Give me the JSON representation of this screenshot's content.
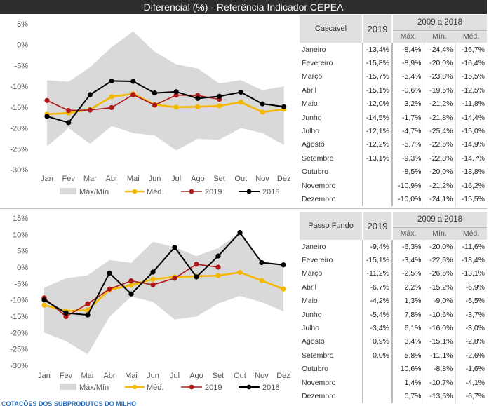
{
  "title": "Diferencial (%) - Referência Indicador CEPEA",
  "bottom_text": "COTAÇÕES DOS SUBPRODUTOS DO MILHO",
  "table_headers": {
    "year": "2019",
    "range": "2009 a 2018",
    "max": "Máx.",
    "min": "Mín.",
    "med": "Méd."
  },
  "colors": {
    "band": "#d9d9d9",
    "med": "#f5b800",
    "y2019": "#b01818",
    "y2018": "#000000"
  },
  "chart_data": [
    {
      "type": "line",
      "categories": [
        "Jan",
        "Fev",
        "Mar",
        "Abr",
        "Mai",
        "Jun",
        "Jul",
        "Ago",
        "Set",
        "Out",
        "Nov",
        "Dez"
      ],
      "ylim": [
        -30,
        5
      ],
      "yticks": [
        5,
        0,
        -5,
        -10,
        -15,
        -20,
        -25,
        -30
      ],
      "ytick_labels": [
        "5%",
        "0%",
        "-5%",
        "-10%",
        "-15%",
        "-20%",
        "-25%",
        "-30%"
      ],
      "legend": [
        "Máx/Mín",
        "Méd.",
        "2019",
        "2018"
      ],
      "band_max": [
        -8.5,
        -8.9,
        -5.4,
        -0.6,
        3.2,
        -1.7,
        -4.7,
        -5.7,
        -9.3,
        -8.5,
        -10.9,
        -10.0
      ],
      "band_min": [
        -24.4,
        -20.0,
        -23.8,
        -19.5,
        -21.2,
        -21.8,
        -25.4,
        -22.6,
        -22.8,
        -20.0,
        -21.2,
        -24.1
      ],
      "series": [
        {
          "name": "Méd.",
          "values": [
            -16.7,
            -16.4,
            -15.5,
            -12.5,
            -11.8,
            -14.4,
            -15.0,
            -14.9,
            -14.7,
            -13.8,
            -16.2,
            -15.5
          ]
        },
        {
          "name": "2019",
          "values": [
            -13.4,
            -15.8,
            -15.7,
            -15.1,
            -12.0,
            -14.5,
            -12.1,
            -12.2,
            -13.1,
            null,
            null,
            null
          ]
        },
        {
          "name": "2018",
          "values": [
            -17.2,
            -18.7,
            -12.0,
            -8.7,
            -8.8,
            -11.6,
            -11.3,
            -12.9,
            -12.4,
            -11.4,
            -14.2,
            -14.9
          ]
        }
      ]
    },
    {
      "type": "line",
      "categories": [
        "Jan",
        "Fev",
        "Mar",
        "Abr",
        "Mai",
        "Jun",
        "Jul",
        "Ago",
        "Set",
        "Out",
        "Nov",
        "Dez"
      ],
      "ylim": [
        -30,
        15
      ],
      "yticks": [
        15,
        10,
        5,
        0,
        -5,
        -10,
        -15,
        -20,
        -25,
        -30
      ],
      "ytick_labels": [
        "15%",
        "10%",
        "5%",
        "0%",
        "-5%",
        "-10%",
        "-15%",
        "-20%",
        "-25%",
        "-30%"
      ],
      "legend": [
        "Máx/Mín",
        "Méd.",
        "2019",
        "2018"
      ],
      "band_max": [
        -6.3,
        -3.4,
        -2.5,
        2.2,
        1.3,
        7.8,
        6.1,
        3.4,
        5.8,
        10.6,
        1.4,
        0.7
      ],
      "band_min": [
        -20.0,
        -22.6,
        -26.6,
        -15.2,
        -9.0,
        -10.6,
        -16.0,
        -15.1,
        -11.1,
        -8.8,
        -10.7,
        -13.5
      ],
      "series": [
        {
          "name": "Méd.",
          "values": [
            -11.6,
            -13.4,
            -13.1,
            -6.9,
            -5.5,
            -3.7,
            -3.0,
            -2.8,
            -2.6,
            -1.6,
            -4.1,
            -6.7
          ]
        },
        {
          "name": "2019",
          "values": [
            -9.4,
            -15.1,
            -11.2,
            -6.7,
            -4.2,
            -5.4,
            -3.4,
            0.9,
            0.0,
            null,
            null,
            null
          ]
        },
        {
          "name": "2018",
          "values": [
            -10.0,
            -14.0,
            -14.6,
            -1.8,
            -8.2,
            -1.5,
            6.1,
            -3.0,
            3.4,
            10.6,
            1.4,
            0.7
          ]
        }
      ]
    }
  ],
  "tables": [
    {
      "city": "Cascavel",
      "rows": [
        {
          "month": "Janeiro",
          "y2019": "-13,4%",
          "max": "-8,4%",
          "min": "-24,4%",
          "med": "-16,7%"
        },
        {
          "month": "Fevereiro",
          "y2019": "-15,8%",
          "max": "-8,9%",
          "min": "-20,0%",
          "med": "-16,4%"
        },
        {
          "month": "Março",
          "y2019": "-15,7%",
          "max": "-5,4%",
          "min": "-23,8%",
          "med": "-15,5%"
        },
        {
          "month": "Abril",
          "y2019": "-15,1%",
          "max": "-0,6%",
          "min": "-19,5%",
          "med": "-12,5%"
        },
        {
          "month": "Maio",
          "y2019": "-12,0%",
          "max": "3,2%",
          "min": "-21,2%",
          "med": "-11,8%"
        },
        {
          "month": "Junho",
          "y2019": "-14,5%",
          "max": "-1,7%",
          "min": "-21,8%",
          "med": "-14,4%"
        },
        {
          "month": "Julho",
          "y2019": "-12,1%",
          "max": "-4,7%",
          "min": "-25,4%",
          "med": "-15,0%"
        },
        {
          "month": "Agosto",
          "y2019": "-12,2%",
          "max": "-5,7%",
          "min": "-22,6%",
          "med": "-14,9%"
        },
        {
          "month": "Setembro",
          "y2019": "-13,1%",
          "max": "-9,3%",
          "min": "-22,8%",
          "med": "-14,7%"
        },
        {
          "month": "Outubro",
          "y2019": "",
          "max": "-8,5%",
          "min": "-20,0%",
          "med": "-13,8%"
        },
        {
          "month": "Novembro",
          "y2019": "",
          "max": "-10,9%",
          "min": "-21,2%",
          "med": "-16,2%"
        },
        {
          "month": "Dezembro",
          "y2019": "",
          "max": "-10,0%",
          "min": "-24,1%",
          "med": "-15,5%"
        }
      ]
    },
    {
      "city": "Passo Fundo",
      "rows": [
        {
          "month": "Janeiro",
          "y2019": "-9,4%",
          "max": "-6,3%",
          "min": "-20,0%",
          "med": "-11,6%"
        },
        {
          "month": "Fevereiro",
          "y2019": "-15,1%",
          "max": "-3,4%",
          "min": "-22,6%",
          "med": "-13,4%"
        },
        {
          "month": "Março",
          "y2019": "-11,2%",
          "max": "-2,5%",
          "min": "-26,6%",
          "med": "-13,1%"
        },
        {
          "month": "Abril",
          "y2019": "-6,7%",
          "max": "2,2%",
          "min": "-15,2%",
          "med": "-6,9%"
        },
        {
          "month": "Maio",
          "y2019": "-4,2%",
          "max": "1,3%",
          "min": "-9,0%",
          "med": "-5,5%"
        },
        {
          "month": "Junho",
          "y2019": "-5,4%",
          "max": "7,8%",
          "min": "-10,6%",
          "med": "-3,7%"
        },
        {
          "month": "Julho",
          "y2019": "-3,4%",
          "max": "6,1%",
          "min": "-16,0%",
          "med": "-3,0%"
        },
        {
          "month": "Agosto",
          "y2019": "0,9%",
          "max": "3,4%",
          "min": "-15,1%",
          "med": "-2,8%"
        },
        {
          "month": "Setembro",
          "y2019": "0,0%",
          "max": "5,8%",
          "min": "-11,1%",
          "med": "-2,6%"
        },
        {
          "month": "Outubro",
          "y2019": "",
          "max": "10,6%",
          "min": "-8,8%",
          "med": "-1,6%"
        },
        {
          "month": "Novembro",
          "y2019": "",
          "max": "1,4%",
          "min": "-10,7%",
          "med": "-4,1%"
        },
        {
          "month": "Dezembro",
          "y2019": "",
          "max": "0,7%",
          "min": "-13,5%",
          "med": "-6,7%"
        }
      ]
    }
  ]
}
